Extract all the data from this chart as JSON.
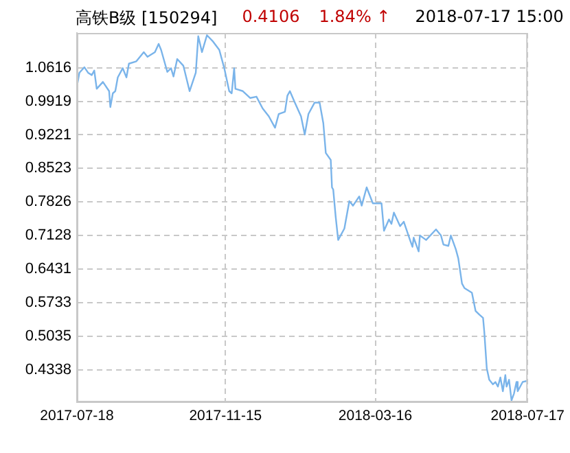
{
  "chart_data": {
    "type": "line",
    "title": "高铁B级 [150294]",
    "annotations": [
      "0.4106",
      "1.84% ↑",
      "2018-07-17 15:00"
    ],
    "x": [
      "2017-07-18",
      "2017-07-20",
      "2017-07-24",
      "2017-07-27",
      "2017-07-30",
      "2017-08-01",
      "2017-08-03",
      "2017-08-08",
      "2017-08-13",
      "2017-08-14",
      "2017-08-16",
      "2017-08-18",
      "2017-08-20",
      "2017-08-24",
      "2017-08-27",
      "2017-08-29",
      "2017-09-04",
      "2017-09-10",
      "2017-09-13",
      "2017-09-19",
      "2017-09-22",
      "2017-09-24",
      "2017-09-29",
      "2017-10-02",
      "2017-10-04",
      "2017-10-07",
      "2017-10-12",
      "2017-10-17",
      "2017-10-22",
      "2017-10-24",
      "2017-10-27",
      "2017-10-31",
      "2017-11-05",
      "2017-11-10",
      "2017-11-14",
      "2017-11-18",
      "2017-11-20",
      "2017-11-22",
      "2017-11-23",
      "2017-11-29",
      "2017-12-05",
      "2017-12-10",
      "2017-12-15",
      "2017-12-20",
      "2017-12-25",
      "2017-12-28",
      "2018-01-02",
      "2018-01-04",
      "2018-01-06",
      "2018-01-10",
      "2018-01-15",
      "2018-01-18",
      "2018-01-21",
      "2018-01-26",
      "2018-01-30",
      "2018-02-02",
      "2018-02-04",
      "2018-02-08",
      "2018-02-09",
      "2018-02-10",
      "2018-02-12",
      "2018-02-14",
      "2018-02-19",
      "2018-02-23",
      "2018-02-26",
      "2018-03-03",
      "2018-03-05",
      "2018-03-09",
      "2018-03-14",
      "2018-03-21",
      "2018-03-23",
      "2018-03-27",
      "2018-03-29",
      "2018-03-31",
      "2018-04-05",
      "2018-04-08",
      "2018-04-13",
      "2018-04-15",
      "2018-04-16",
      "2018-04-20",
      "2018-04-21",
      "2018-04-26",
      "2018-05-04",
      "2018-05-08",
      "2018-05-10",
      "2018-05-14",
      "2018-05-16",
      "2018-05-20",
      "2018-05-22",
      "2018-05-25",
      "2018-05-27",
      "2018-06-02",
      "2018-06-05",
      "2018-06-08",
      "2018-06-11",
      "2018-06-12",
      "2018-06-14",
      "2018-06-16",
      "2018-06-19",
      "2018-06-21",
      "2018-06-23",
      "2018-06-25",
      "2018-06-27",
      "2018-06-29",
      "2018-06-30",
      "2018-07-02",
      "2018-07-04",
      "2018-07-06",
      "2018-07-08",
      "2018-07-09",
      "2018-07-11",
      "2018-07-13",
      "2018-07-17"
    ],
    "series": [
      {
        "color": "#7ab4ea",
        "values": [
          1.0227,
          1.0513,
          1.0627,
          1.0513,
          1.0464,
          1.0558,
          1.0178,
          1.0321,
          1.013,
          0.9798,
          1.0084,
          1.013,
          1.0415,
          1.0607,
          1.0415,
          1.0701,
          1.075,
          1.0941,
          1.0844,
          1.0941,
          1.1113,
          1.0987,
          1.053,
          1.0607,
          1.0435,
          1.0798,
          1.0656,
          1.013,
          1.0513,
          1.1273,
          1.0941,
          1.1293,
          1.1159,
          1.0987,
          1.0607,
          1.013,
          1.0084,
          1.0607,
          1.0178,
          1.013,
          0.9987,
          1.0015,
          0.9769,
          0.9606,
          0.9369,
          0.9655,
          0.9701,
          1.0035,
          1.013,
          0.9892,
          0.9606,
          0.9226,
          0.9655,
          0.9892,
          0.9892,
          0.9463,
          0.8843,
          0.87,
          0.8128,
          0.8083,
          0.7511,
          0.7034,
          0.7271,
          0.7843,
          0.7748,
          0.794,
          0.7748,
          0.8128,
          0.7797,
          0.7797,
          0.7225,
          0.7462,
          0.7368,
          0.7605,
          0.732,
          0.7414,
          0.7034,
          0.6891,
          0.7082,
          0.6796,
          0.7128,
          0.7034,
          0.7254,
          0.7128,
          0.6939,
          0.6911,
          0.7128,
          0.6842,
          0.6653,
          0.6128,
          0.6033,
          0.5938,
          0.5556,
          0.5481,
          0.5413,
          0.5127,
          0.4367,
          0.4126,
          0.4032,
          0.4081,
          0.3984,
          0.4175,
          0.3889,
          0.4224,
          0.3984,
          0.4126,
          0.3698,
          0.3841,
          0.4081,
          0.3889,
          0.3984,
          0.4081,
          0.4106
        ]
      }
    ],
    "xlim": [
      "2017-07-18",
      "2018-07-17"
    ],
    "xticks": [
      "2017-07-18",
      "2017-11-15",
      "2018-03-16",
      "2018-07-17"
    ],
    "ylim": [
      0.366,
      1.134
    ],
    "yticks": [
      0.4338,
      0.5035,
      0.5733,
      0.6431,
      0.7128,
      0.7826,
      0.8523,
      0.9221,
      0.9919,
      1.0616
    ],
    "grid": true,
    "legend": false,
    "marker": "none",
    "line_style": "solid"
  }
}
